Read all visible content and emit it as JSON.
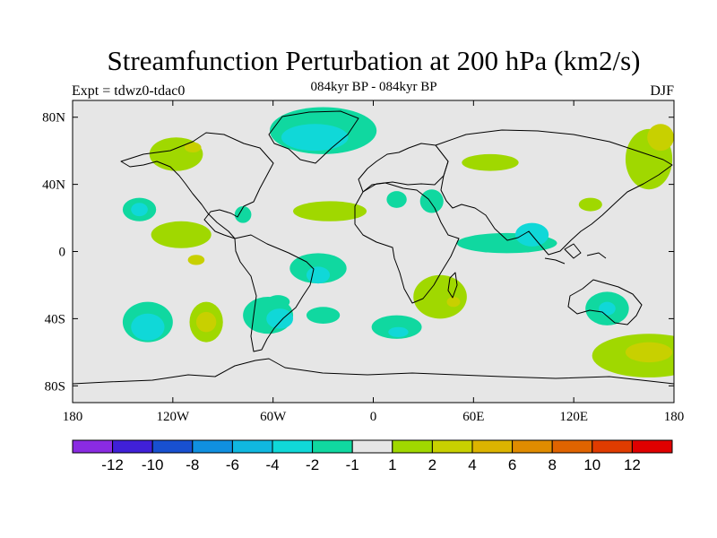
{
  "header": {
    "title": "Streamfunction Perturbation at 200 hPa (km2/s)",
    "subtitle": "084kyr BP - 084kyr BP",
    "experiment": "Expt = tdwz0-tdac0",
    "season": "DJF"
  },
  "chart_data": {
    "type": "heatmap",
    "title": "Streamfunction Perturbation at 200 hPa (km2/s)",
    "subtitle": "084kyr BP - 084kyr BP",
    "xlim": [
      -180,
      180
    ],
    "ylim": [
      -90,
      90
    ],
    "x_ticks": [
      {
        "value": -180,
        "label": "180"
      },
      {
        "value": -120,
        "label": "120W"
      },
      {
        "value": -60,
        "label": "60W"
      },
      {
        "value": 0,
        "label": "0"
      },
      {
        "value": 60,
        "label": "60E"
      },
      {
        "value": 120,
        "label": "120E"
      },
      {
        "value": 180,
        "label": "180"
      }
    ],
    "y_ticks": [
      {
        "value": 80,
        "label": "80N"
      },
      {
        "value": 40,
        "label": "40N"
      },
      {
        "value": 0,
        "label": "0"
      },
      {
        "value": -40,
        "label": "40S"
      },
      {
        "value": -80,
        "label": "80S"
      }
    ],
    "background_color": "#e6e6e6",
    "colorbar": {
      "colors": [
        "#8a2be2",
        "#4020d8",
        "#1850d0",
        "#1090e0",
        "#10b8e0",
        "#10d8d8",
        "#10d8a0",
        "#e6e6e6",
        "#a0d800",
        "#c8d000",
        "#dcb400",
        "#e08c00",
        "#e06400",
        "#e03c00",
        "#e00000"
      ],
      "labels": [
        "-12",
        "-10",
        "-8",
        "-6",
        "-4",
        "-2",
        "-1",
        "1",
        "2",
        "4",
        "6",
        "8",
        "10",
        "12"
      ]
    },
    "anomaly_regions": [
      {
        "lon": -118,
        "lat": 58,
        "rx": 16,
        "ry": 10,
        "level": 2
      },
      {
        "lon": -108,
        "lat": 62,
        "rx": 5,
        "ry": 3,
        "level": 4
      },
      {
        "lon": -115,
        "lat": 10,
        "rx": 18,
        "ry": 8,
        "level": 2
      },
      {
        "lon": -106,
        "lat": -5,
        "rx": 5,
        "ry": 3,
        "level": 4
      },
      {
        "lon": -140,
        "lat": 25,
        "rx": 10,
        "ry": 7,
        "level": -1
      },
      {
        "lon": -140,
        "lat": 25,
        "rx": 5,
        "ry": 4,
        "level": -2
      },
      {
        "lon": -135,
        "lat": -42,
        "rx": 15,
        "ry": 12,
        "level": -1
      },
      {
        "lon": -135,
        "lat": -45,
        "rx": 10,
        "ry": 8,
        "level": -2
      },
      {
        "lon": -100,
        "lat": -42,
        "rx": 10,
        "ry": 12,
        "level": 2
      },
      {
        "lon": -100,
        "lat": -42,
        "rx": 6,
        "ry": 6,
        "level": 4
      },
      {
        "lon": -63,
        "lat": -38,
        "rx": 15,
        "ry": 11,
        "level": -1
      },
      {
        "lon": -56,
        "lat": -40,
        "rx": 8,
        "ry": 6,
        "level": -2
      },
      {
        "lon": -57,
        "lat": -30,
        "rx": 7,
        "ry": 4,
        "level": -1
      },
      {
        "lon": -30,
        "lat": 72,
        "rx": 32,
        "ry": 14,
        "level": -1
      },
      {
        "lon": -35,
        "lat": 68,
        "rx": 20,
        "ry": 8,
        "level": -2
      },
      {
        "lon": -78,
        "lat": 22,
        "rx": 5,
        "ry": 5,
        "level": -1
      },
      {
        "lon": -26,
        "lat": 24,
        "rx": 22,
        "ry": 6,
        "level": 2
      },
      {
        "lon": -33,
        "lat": -10,
        "rx": 17,
        "ry": 9,
        "level": -1
      },
      {
        "lon": -33,
        "lat": -14,
        "rx": 7,
        "ry": 5,
        "level": -2
      },
      {
        "lon": -30,
        "lat": -38,
        "rx": 10,
        "ry": 5,
        "level": -1
      },
      {
        "lon": 14,
        "lat": -45,
        "rx": 15,
        "ry": 7,
        "level": -1
      },
      {
        "lon": 15,
        "lat": -48,
        "rx": 6,
        "ry": 3,
        "level": -2
      },
      {
        "lon": 40,
        "lat": -27,
        "rx": 16,
        "ry": 13,
        "level": 2
      },
      {
        "lon": 48,
        "lat": -30,
        "rx": 4,
        "ry": 3,
        "level": 4
      },
      {
        "lon": 70,
        "lat": 53,
        "rx": 17,
        "ry": 5,
        "level": 2
      },
      {
        "lon": 14,
        "lat": 31,
        "rx": 6,
        "ry": 5,
        "level": -1
      },
      {
        "lon": 35,
        "lat": 30,
        "rx": 7,
        "ry": 7,
        "level": -1
      },
      {
        "lon": 80,
        "lat": 5,
        "rx": 30,
        "ry": 6,
        "level": -1
      },
      {
        "lon": 95,
        "lat": 10,
        "rx": 10,
        "ry": 7,
        "level": -2
      },
      {
        "lon": 130,
        "lat": 28,
        "rx": 7,
        "ry": 4,
        "level": 2
      },
      {
        "lon": 165,
        "lat": 55,
        "rx": 14,
        "ry": 18,
        "level": 2
      },
      {
        "lon": 172,
        "lat": 68,
        "rx": 8,
        "ry": 8,
        "level": 4
      },
      {
        "lon": 140,
        "lat": -34,
        "rx": 13,
        "ry": 10,
        "level": -1
      },
      {
        "lon": 140,
        "lat": -34,
        "rx": 5,
        "ry": 4,
        "level": -2
      },
      {
        "lon": 165,
        "lat": -62,
        "rx": 34,
        "ry": 13,
        "level": 2
      },
      {
        "lon": 165,
        "lat": -60,
        "rx": 14,
        "ry": 6,
        "level": 4
      }
    ]
  }
}
